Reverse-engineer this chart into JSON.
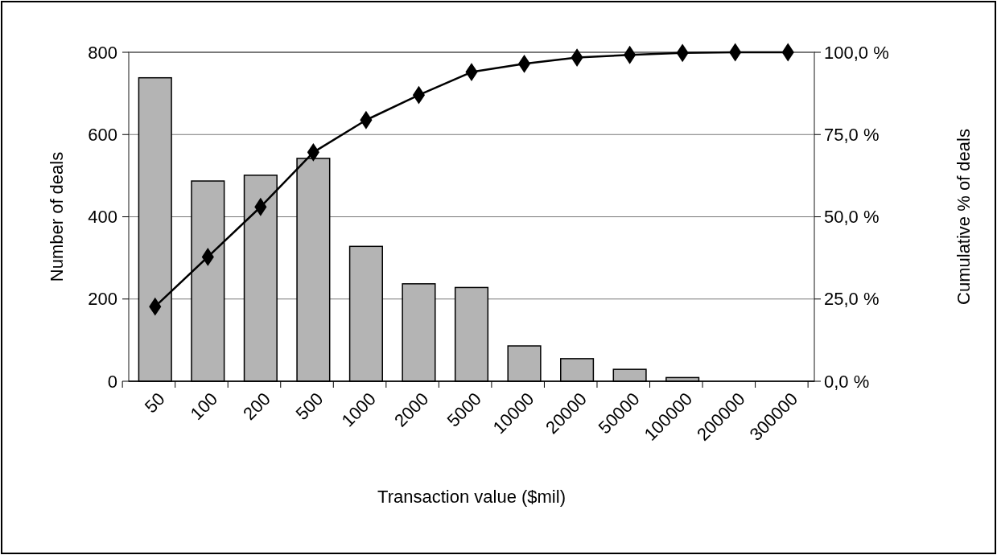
{
  "chart_data": {
    "type": "bar",
    "xlabel": "Transaction value ($mil)",
    "ylabel": "Number of deals",
    "y2label": "Cumulative % of deals",
    "categories": [
      "50",
      "100",
      "200",
      "500",
      "1000",
      "2000",
      "5000",
      "10000",
      "20000",
      "50000",
      "100000",
      "200000",
      "300000"
    ],
    "series": [
      {
        "color": "#b4b4b4",
        "values": [
          738,
          487,
          501,
          542,
          328,
          237,
          228,
          86,
          55,
          29,
          9,
          0,
          0
        ]
      },
      {
        "type": "line",
        "axis": "y2",
        "color": "#000000",
        "marker": "diamond",
        "values": [
          22.7,
          37.8,
          53.0,
          69.6,
          79.4,
          87.0,
          94.0,
          96.5,
          98.4,
          99.2,
          99.8,
          100,
          100
        ]
      }
    ],
    "ylim": [
      0,
      800
    ],
    "yticks": [
      0,
      200,
      400,
      600,
      800
    ],
    "y2lim": [
      0,
      100
    ],
    "y2ticks": [
      {
        "value": 0,
        "label": "0,0 %"
      },
      {
        "value": 25,
        "label": "25,0 %"
      },
      {
        "value": 50,
        "label": "50,0 %"
      },
      {
        "value": 75,
        "label": "75,0 %"
      },
      {
        "value": 100,
        "label": "100,0 %"
      }
    ],
    "grid": "y"
  }
}
